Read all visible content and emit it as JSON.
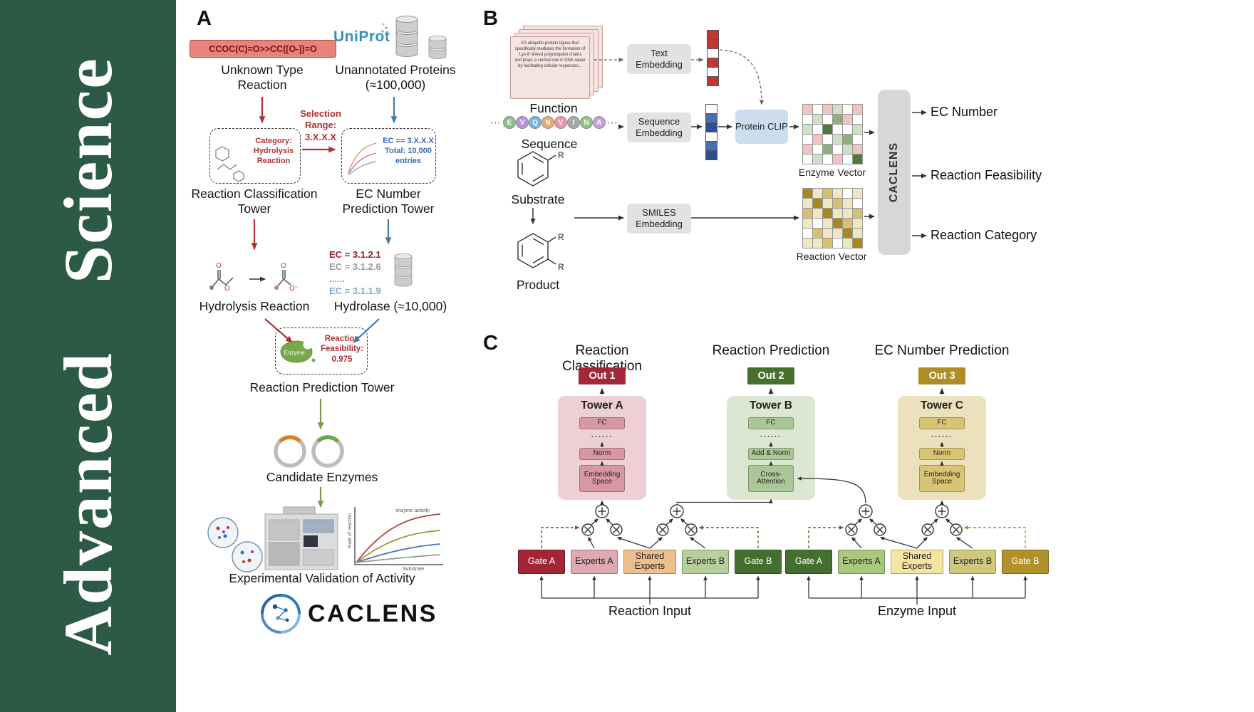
{
  "journal": {
    "name": "Advanced Science"
  },
  "panelA": {
    "label": "A",
    "smiles": "CCOC(C)=O>>CC([O-])=O",
    "unknown_reaction_label": "Unknown Type Reaction",
    "uniprot_logo": "UniProt",
    "unannotated_label": "Unannotated Proteins (≈100,000)",
    "selection_range": "Selection Range: 3.X.X.X",
    "category_box": "Category: Hydrolysis Reaction",
    "ec_box_line1": "EC == 3.X.X.X",
    "ec_box_line2": "Total: 10,000",
    "ec_box_line3": "entries",
    "classification_tower_label": "Reaction Classification Tower",
    "ec_tower_label": "EC Number Prediction Tower",
    "hydrolysis_label": "Hydrolysis Reaction",
    "ec_items": [
      "EC = 3.1.2.1",
      "EC = 3.1.2.6",
      "......",
      "EC = 3.1.1.9"
    ],
    "hydrolase_label": "Hydrolase (≈10,000)",
    "enzyme_blob_label": "Enzyme",
    "feasibility_line1": "Reaction",
    "feasibility_line2": "Feasibility:",
    "feasibility_line3": "0.975",
    "prediction_tower_label": "Reaction Prediction Tower",
    "candidate_label": "Candidate Enzymes",
    "validation_label": "Experimental Validation of Activity",
    "atom_o": "O",
    "atom_o_minus": "O⁻",
    "graph_top_label": "enzyme activity",
    "graph_x_label": "Substrate",
    "graph_y_label": "Rate of reaction",
    "wordmark": "CACLENS"
  },
  "panelB": {
    "label": "B",
    "function_card_text": "E3 ubiquitin-protein ligase that specifically mediates the formation of 'Lys-6'-linked polyubiquitin chains and plays a central role in DNA repair by facilitating cellular responses...",
    "function_label": "Function",
    "ellipsis": "···",
    "sequence_residues": [
      {
        "letter": "E",
        "color": "#8fbc8b"
      },
      {
        "letter": "V",
        "color": "#b795d1"
      },
      {
        "letter": "Q",
        "color": "#7fb2d5"
      },
      {
        "letter": "N",
        "color": "#e8a979"
      },
      {
        "letter": "V",
        "color": "#e794ae"
      },
      {
        "letter": "I",
        "color": "#a9a9a9"
      },
      {
        "letter": "N",
        "color": "#93c187"
      },
      {
        "letter": "A",
        "color": "#c6a0da"
      }
    ],
    "sequence_label": "Sequence",
    "substrate_label": "Substrate",
    "product_label": "Product",
    "substituent": "R",
    "text_embedding": "Text Embedding",
    "sequence_embedding": "Sequence Embedding",
    "smiles_embedding": "SMILES Embedding",
    "protein_clip": "Protein CLIP",
    "text_vector": [
      "#c13832",
      "#c13832",
      "#ffffff",
      "#c13832",
      "#ffffff",
      "#c13832"
    ],
    "sequence_vector": [
      "#ffffff",
      "#4a6fae",
      "#2f4f92",
      "#ffffff",
      "#4a6fae",
      "#2f4f92"
    ],
    "enzyme_vector_grid": [
      [
        "#f2c3c3",
        "#ffffff",
        "#f2c3c3",
        "#cfe0c5",
        "#ffffff",
        "#f2c3c3"
      ],
      [
        "#ffffff",
        "#cfe0c5",
        "#ffffff",
        "#8fb07d",
        "#f2c3c3",
        "#ffffff"
      ],
      [
        "#cfe0c5",
        "#ffffff",
        "#4f7a3c",
        "#ffffff",
        "#ffffff",
        "#cfe0c5"
      ],
      [
        "#ffffff",
        "#f2c3c3",
        "#ffffff",
        "#cfe0c5",
        "#8fb07d",
        "#ffffff"
      ],
      [
        "#f2c3c3",
        "#ffffff",
        "#8fb07d",
        "#ffffff",
        "#cfe0c5",
        "#f2c3c3"
      ],
      [
        "#ffffff",
        "#cfe0c5",
        "#ffffff",
        "#f2c3c3",
        "#ffffff",
        "#4f7a3c"
      ]
    ],
    "reaction_vector_grid": [
      [
        "#a8881f",
        "#efe6c2",
        "#d6bf6e",
        "#efe6c2",
        "#ffffff",
        "#efe6c2"
      ],
      [
        "#efe6c2",
        "#a8881f",
        "#efe6c2",
        "#d6bf6e",
        "#efe6c2",
        "#ffffff"
      ],
      [
        "#d6bf6e",
        "#efe6c2",
        "#a8881f",
        "#efe6c2",
        "#efe6c2",
        "#d6bf6e"
      ],
      [
        "#efe6c2",
        "#ffffff",
        "#efe6c2",
        "#a8881f",
        "#d6bf6e",
        "#efe6c2"
      ],
      [
        "#ffffff",
        "#d6bf6e",
        "#efe6c2",
        "#efe6c2",
        "#a8881f",
        "#efe6c2"
      ],
      [
        "#efe6c2",
        "#efe6c2",
        "#d6bf6e",
        "#ffffff",
        "#efe6c2",
        "#a8881f"
      ]
    ],
    "enzyme_vector_label": "Enzyme Vector",
    "reaction_vector_label": "Reaction Vector",
    "caclens_bar": "CACLENS",
    "outputs": [
      "EC Number",
      "Reaction Feasibility",
      "Reaction Category"
    ]
  },
  "panelC": {
    "label": "C",
    "towers": [
      {
        "header": "Reaction Classification",
        "out": "Out 1",
        "out_bg": "#a42637",
        "title": "Tower A",
        "bg": "#ecd0d5",
        "box_bg": "#d898a2",
        "fc": "FC",
        "dots": "......",
        "mid": "Norm",
        "bottom": "Embedding Space"
      },
      {
        "header": "Reaction Prediction",
        "out": "Out 2",
        "out_bg": "#47702f",
        "title": "Tower B",
        "bg": "#dbe7d2",
        "box_bg": "#abc797",
        "fc": "FC",
        "dots": "......",
        "mid": "Add & Norm",
        "bottom": "Cross-Attention"
      },
      {
        "header": "EC Number Prediction",
        "out": "Out 3",
        "out_bg": "#ad8d24",
        "title": "Tower C",
        "bg": "#ebe2bd",
        "box_bg": "#d9c476",
        "fc": "FC",
        "dots": "......",
        "mid": "Norm",
        "bottom": "Embedding Space"
      }
    ],
    "reaction_experts": [
      {
        "label": "Gate A",
        "bg": "#a32638",
        "fg": "#ffffff"
      },
      {
        "label": "Experts A",
        "bg": "#dfa9b1",
        "fg": "#222222"
      },
      {
        "label": "Shared Experts",
        "bg": "#edbe8e",
        "fg": "#222222"
      },
      {
        "label": "Experts B",
        "bg": "#b7cf9b",
        "fg": "#222222"
      },
      {
        "label": "Gate B",
        "bg": "#44702f",
        "fg": "#ffffff"
      }
    ],
    "enzyme_experts": [
      {
        "label": "Gate A",
        "bg": "#44702f",
        "fg": "#ffffff"
      },
      {
        "label": "Experts A",
        "bg": "#a9c87d",
        "fg": "#222222"
      },
      {
        "label": "Shared Experts",
        "bg": "#f4e6a2",
        "fg": "#222222"
      },
      {
        "label": "Experts B",
        "bg": "#cfc87e",
        "fg": "#222222"
      },
      {
        "label": "Gate B",
        "bg": "#b2902c",
        "fg": "#ffffff"
      }
    ],
    "reaction_input": "Reaction Input",
    "enzyme_input": "Enzyme Input"
  }
}
